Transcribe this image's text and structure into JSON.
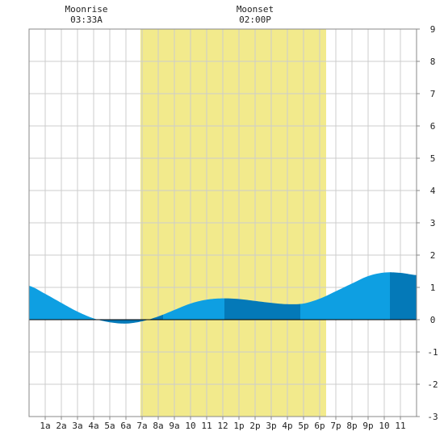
{
  "chart_data": {
    "type": "area",
    "x_unit": "hour of day",
    "y_range": [
      -3,
      9
    ],
    "x_range": [
      0,
      24
    ],
    "grid": true,
    "y_ticks": [
      "-3",
      "-2",
      "-1",
      "0",
      "1",
      "2",
      "3",
      "4",
      "5",
      "6",
      "7",
      "8",
      "9"
    ],
    "x_ticks": [
      {
        "hour": 1,
        "label": "1a"
      },
      {
        "hour": 2,
        "label": "2a"
      },
      {
        "hour": 3,
        "label": "3a"
      },
      {
        "hour": 4,
        "label": "4a"
      },
      {
        "hour": 5,
        "label": "5a"
      },
      {
        "hour": 6,
        "label": "6a"
      },
      {
        "hour": 7,
        "label": "7a"
      },
      {
        "hour": 8,
        "label": "8a"
      },
      {
        "hour": 9,
        "label": "9a"
      },
      {
        "hour": 10,
        "label": "10"
      },
      {
        "hour": 11,
        "label": "11"
      },
      {
        "hour": 12,
        "label": "12"
      },
      {
        "hour": 13,
        "label": "1p"
      },
      {
        "hour": 14,
        "label": "2p"
      },
      {
        "hour": 15,
        "label": "3p"
      },
      {
        "hour": 16,
        "label": "4p"
      },
      {
        "hour": 17,
        "label": "5p"
      },
      {
        "hour": 18,
        "label": "6p"
      },
      {
        "hour": 19,
        "label": "7p"
      },
      {
        "hour": 20,
        "label": "8p"
      },
      {
        "hour": 21,
        "label": "9p"
      },
      {
        "hour": 22,
        "label": "10"
      },
      {
        "hour": 23,
        "label": "11"
      }
    ],
    "daylight": {
      "start_hour": 6.9,
      "end_hour": 18.4
    },
    "moon": [
      {
        "name": "Moonrise",
        "time": "03:33A",
        "hour": 3.55
      },
      {
        "name": "Moonset",
        "time": "02:00P",
        "hour": 14.0
      }
    ],
    "tide_bands": [
      {
        "start_hour": 0,
        "end_hour": 4.3,
        "shade": "light"
      },
      {
        "start_hour": 4.3,
        "end_hour": 8.3,
        "shade": "dark"
      },
      {
        "start_hour": 8.3,
        "end_hour": 12.1,
        "shade": "light"
      },
      {
        "start_hour": 12.1,
        "end_hour": 16.8,
        "shade": "dark"
      },
      {
        "start_hour": 16.8,
        "end_hour": 22.35,
        "shade": "light"
      },
      {
        "start_hour": 22.35,
        "end_hour": 24,
        "shade": "dark"
      }
    ],
    "series": [
      {
        "values": [
          {
            "x": 0,
            "y": 1.05
          },
          {
            "x": 1,
            "y": 0.8
          },
          {
            "x": 2,
            "y": 0.52
          },
          {
            "x": 3,
            "y": 0.25
          },
          {
            "x": 4,
            "y": 0.04
          },
          {
            "x": 5,
            "y": -0.08
          },
          {
            "x": 6,
            "y": -0.12
          },
          {
            "x": 7,
            "y": -0.05
          },
          {
            "x": 8,
            "y": 0.1
          },
          {
            "x": 9,
            "y": 0.3
          },
          {
            "x": 10,
            "y": 0.5
          },
          {
            "x": 11,
            "y": 0.62
          },
          {
            "x": 12,
            "y": 0.66
          },
          {
            "x": 13,
            "y": 0.64
          },
          {
            "x": 14,
            "y": 0.58
          },
          {
            "x": 15,
            "y": 0.52
          },
          {
            "x": 16,
            "y": 0.48
          },
          {
            "x": 17,
            "y": 0.5
          },
          {
            "x": 18,
            "y": 0.65
          },
          {
            "x": 19,
            "y": 0.88
          },
          {
            "x": 20,
            "y": 1.12
          },
          {
            "x": 21,
            "y": 1.35
          },
          {
            "x": 22,
            "y": 1.46
          },
          {
            "x": 23,
            "y": 1.45
          },
          {
            "x": 24,
            "y": 1.38
          }
        ]
      }
    ]
  },
  "colors": {
    "daylight": "#f2ea8c",
    "tide_light": "#0e9fe2",
    "tide_dark": "#0479b8",
    "grid": "#cccccc",
    "axis": "#888888",
    "zero_line": "#000000"
  }
}
